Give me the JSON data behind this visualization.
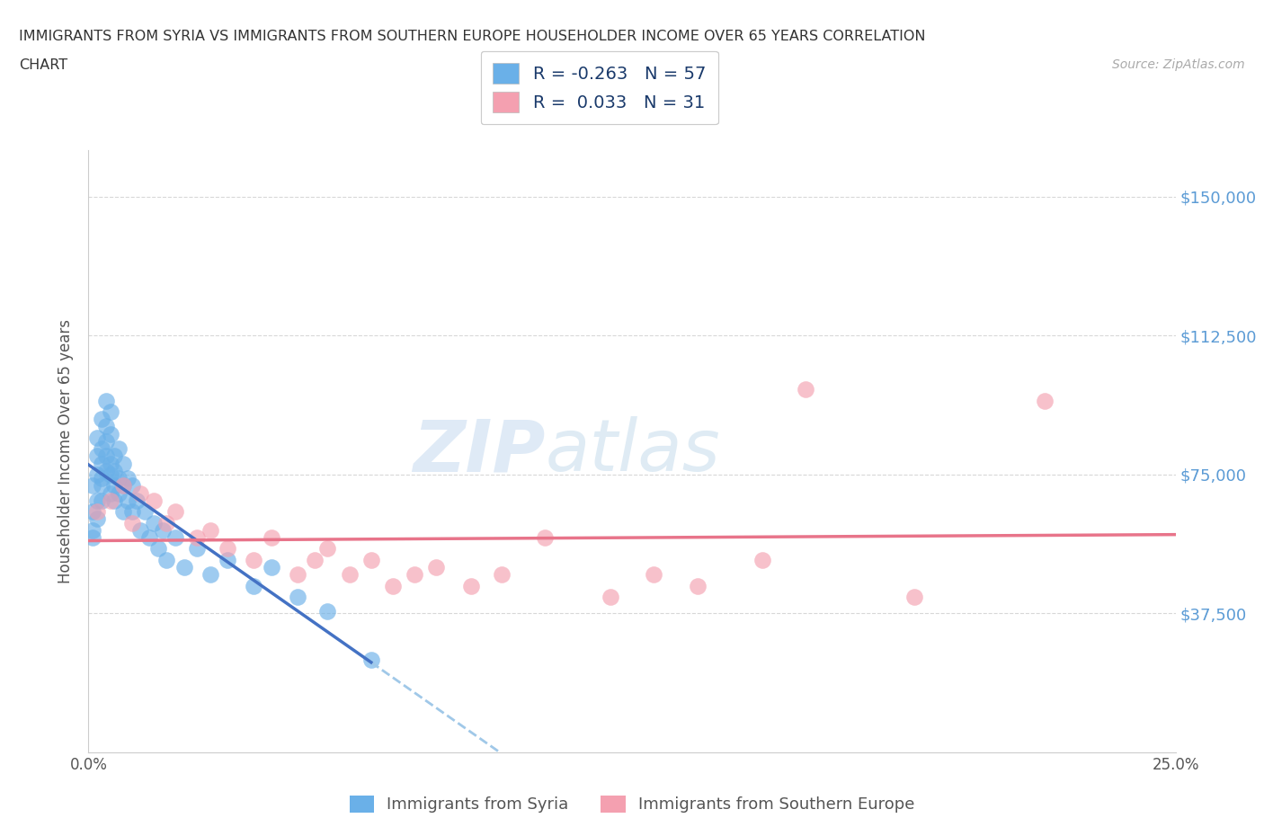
{
  "title_line1": "IMMIGRANTS FROM SYRIA VS IMMIGRANTS FROM SOUTHERN EUROPE HOUSEHOLDER INCOME OVER 65 YEARS CORRELATION",
  "title_line2": "CHART",
  "source": "Source: ZipAtlas.com",
  "ylabel": "Householder Income Over 65 years",
  "xlim": [
    0.0,
    0.25
  ],
  "ylim": [
    0,
    162500
  ],
  "xticks": [
    0.0,
    0.05,
    0.1,
    0.15,
    0.2,
    0.25
  ],
  "xtick_labels": [
    "0.0%",
    "",
    "",
    "",
    "",
    "25.0%"
  ],
  "yticks": [
    0,
    37500,
    75000,
    112500,
    150000
  ],
  "ytick_labels": [
    "",
    "$37,500",
    "$75,000",
    "$112,500",
    "$150,000"
  ],
  "legend_R_syria": "-0.263",
  "legend_N_syria": "57",
  "legend_R_south": "0.033",
  "legend_N_south": "31",
  "syria_color": "#6ab0e8",
  "south_color": "#f4a0b0",
  "syria_line_color": "#4472c4",
  "south_line_color": "#e8748a",
  "dashed_line_color": "#a0c8e8",
  "syria_x": [
    0.001,
    0.001,
    0.001,
    0.001,
    0.002,
    0.002,
    0.002,
    0.002,
    0.002,
    0.003,
    0.003,
    0.003,
    0.003,
    0.003,
    0.003,
    0.004,
    0.004,
    0.004,
    0.004,
    0.004,
    0.005,
    0.005,
    0.005,
    0.005,
    0.005,
    0.006,
    0.006,
    0.006,
    0.006,
    0.007,
    0.007,
    0.007,
    0.008,
    0.008,
    0.008,
    0.009,
    0.009,
    0.01,
    0.01,
    0.011,
    0.012,
    0.013,
    0.014,
    0.015,
    0.016,
    0.017,
    0.018,
    0.02,
    0.022,
    0.025,
    0.028,
    0.032,
    0.038,
    0.042,
    0.048,
    0.055,
    0.065
  ],
  "syria_y": [
    58000,
    65000,
    72000,
    60000,
    80000,
    75000,
    68000,
    85000,
    63000,
    90000,
    82000,
    78000,
    72000,
    68000,
    74000,
    95000,
    88000,
    80000,
    76000,
    84000,
    78000,
    86000,
    70000,
    92000,
    75000,
    72000,
    80000,
    68000,
    76000,
    74000,
    82000,
    70000,
    78000,
    65000,
    72000,
    68000,
    74000,
    65000,
    72000,
    68000,
    60000,
    65000,
    58000,
    62000,
    55000,
    60000,
    52000,
    58000,
    50000,
    55000,
    48000,
    52000,
    45000,
    50000,
    42000,
    38000,
    25000
  ],
  "south_x": [
    0.002,
    0.005,
    0.008,
    0.01,
    0.012,
    0.015,
    0.018,
    0.02,
    0.025,
    0.028,
    0.032,
    0.038,
    0.042,
    0.048,
    0.052,
    0.055,
    0.06,
    0.065,
    0.07,
    0.075,
    0.08,
    0.088,
    0.095,
    0.105,
    0.12,
    0.13,
    0.14,
    0.155,
    0.165,
    0.19,
    0.22
  ],
  "south_y": [
    65000,
    68000,
    72000,
    62000,
    70000,
    68000,
    62000,
    65000,
    58000,
    60000,
    55000,
    52000,
    58000,
    48000,
    52000,
    55000,
    48000,
    52000,
    45000,
    48000,
    50000,
    45000,
    48000,
    58000,
    42000,
    48000,
    45000,
    52000,
    98000,
    42000,
    95000
  ],
  "background_color": "#ffffff",
  "grid_color": "#d8d8d8",
  "title_color": "#333333",
  "axis_color": "#555555",
  "tick_color": "#5b9bd5"
}
